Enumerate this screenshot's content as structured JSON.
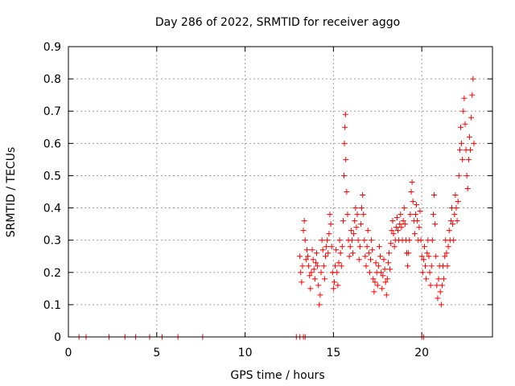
{
  "chart_data": {
    "type": "scatter",
    "title": "Day 286 of 2022, SRMTID for receiver aggo",
    "xlabel": "GPS time / hours",
    "ylabel": "SRMTID / TECUs",
    "xlim": [
      0,
      24
    ],
    "ylim": [
      0,
      0.9
    ],
    "xticks": [
      0,
      5,
      10,
      15,
      20
    ],
    "xtick_labels": [
      "0",
      "5",
      "10",
      "15",
      "20"
    ],
    "yticks": [
      0,
      0.1,
      0.2,
      0.3,
      0.4,
      0.5,
      0.6,
      0.7,
      0.8,
      0.9
    ],
    "ytick_labels": [
      "0",
      "0.1",
      "0.2",
      "0.3",
      "0.4",
      "0.5",
      "0.6",
      "0.7",
      "0.8",
      "0.9"
    ],
    "grid": true,
    "marker": "plus",
    "color": "#ff0000",
    "series": [
      {
        "name": "SRMTID",
        "points": [
          [
            0.6,
            0
          ],
          [
            1.0,
            0
          ],
          [
            2.3,
            0
          ],
          [
            3.2,
            0
          ],
          [
            3.8,
            0
          ],
          [
            4.6,
            0
          ],
          [
            5.3,
            0
          ],
          [
            6.2,
            0
          ],
          [
            7.6,
            0
          ],
          [
            12.9,
            0
          ],
          [
            13.1,
            0
          ],
          [
            13.3,
            0
          ],
          [
            13.4,
            0
          ],
          [
            20.0,
            0
          ],
          [
            20.1,
            0
          ],
          [
            13.1,
            0.25
          ],
          [
            13.15,
            0.2
          ],
          [
            13.2,
            0.17
          ],
          [
            13.25,
            0.22
          ],
          [
            13.3,
            0.33
          ],
          [
            13.35,
            0.36
          ],
          [
            13.4,
            0.3
          ],
          [
            13.45,
            0.24
          ],
          [
            13.5,
            0.27
          ],
          [
            13.55,
            0.25
          ],
          [
            13.6,
            0.22
          ],
          [
            13.65,
            0.19
          ],
          [
            13.7,
            0.15
          ],
          [
            13.75,
            0.2
          ],
          [
            13.8,
            0.27
          ],
          [
            13.85,
            0.24
          ],
          [
            13.9,
            0.21
          ],
          [
            13.95,
            0.18
          ],
          [
            14.0,
            0.23
          ],
          [
            14.05,
            0.26
          ],
          [
            14.1,
            0.22
          ],
          [
            14.15,
            0.16
          ],
          [
            14.2,
            0.1
          ],
          [
            14.25,
            0.13
          ],
          [
            14.3,
            0.2
          ],
          [
            14.35,
            0.3
          ],
          [
            14.4,
            0.27
          ],
          [
            14.45,
            0.22
          ],
          [
            14.5,
            0.18
          ],
          [
            14.55,
            0.25
          ],
          [
            14.6,
            0.28
          ],
          [
            14.65,
            0.3
          ],
          [
            14.7,
            0.26
          ],
          [
            14.75,
            0.32
          ],
          [
            14.8,
            0.38
          ],
          [
            14.85,
            0.35
          ],
          [
            14.9,
            0.28
          ],
          [
            14.95,
            0.2
          ],
          [
            15.0,
            0.15
          ],
          [
            15.05,
            0.17
          ],
          [
            15.1,
            0.22
          ],
          [
            15.15,
            0.27
          ],
          [
            15.2,
            0.2
          ],
          [
            15.25,
            0.16
          ],
          [
            15.3,
            0.23
          ],
          [
            15.35,
            0.3
          ],
          [
            15.4,
            0.26
          ],
          [
            15.45,
            0.22
          ],
          [
            15.5,
            0.28
          ],
          [
            15.55,
            0.36
          ],
          [
            15.6,
            0.5
          ],
          [
            15.62,
            0.6
          ],
          [
            15.65,
            0.65
          ],
          [
            15.68,
            0.69
          ],
          [
            15.7,
            0.55
          ],
          [
            15.75,
            0.45
          ],
          [
            15.8,
            0.38
          ],
          [
            15.85,
            0.3
          ],
          [
            15.9,
            0.25
          ],
          [
            15.95,
            0.28
          ],
          [
            16.0,
            0.33
          ],
          [
            16.05,
            0.3
          ],
          [
            16.1,
            0.26
          ],
          [
            16.15,
            0.32
          ],
          [
            16.2,
            0.36
          ],
          [
            16.25,
            0.4
          ],
          [
            16.3,
            0.34
          ],
          [
            16.35,
            0.38
          ],
          [
            16.4,
            0.3
          ],
          [
            16.45,
            0.24
          ],
          [
            16.5,
            0.28
          ],
          [
            16.55,
            0.35
          ],
          [
            16.6,
            0.4
          ],
          [
            16.65,
            0.44
          ],
          [
            16.7,
            0.38
          ],
          [
            16.75,
            0.3
          ],
          [
            16.8,
            0.25
          ],
          [
            16.85,
            0.22
          ],
          [
            16.9,
            0.28
          ],
          [
            16.95,
            0.33
          ],
          [
            17.0,
            0.26
          ],
          [
            17.05,
            0.2
          ],
          [
            17.1,
            0.24
          ],
          [
            17.15,
            0.3
          ],
          [
            17.2,
            0.27
          ],
          [
            17.25,
            0.18
          ],
          [
            17.3,
            0.14
          ],
          [
            17.35,
            0.17
          ],
          [
            17.4,
            0.23
          ],
          [
            17.45,
            0.2
          ],
          [
            17.5,
            0.16
          ],
          [
            17.55,
            0.22
          ],
          [
            17.6,
            0.28
          ],
          [
            17.65,
            0.25
          ],
          [
            17.7,
            0.2
          ],
          [
            17.75,
            0.15
          ],
          [
            17.8,
            0.19
          ],
          [
            17.85,
            0.24
          ],
          [
            17.9,
            0.21
          ],
          [
            17.95,
            0.17
          ],
          [
            18.0,
            0.13
          ],
          [
            18.05,
            0.18
          ],
          [
            18.1,
            0.23
          ],
          [
            18.15,
            0.26
          ],
          [
            18.2,
            0.21
          ],
          [
            18.25,
            0.29
          ],
          [
            18.3,
            0.33
          ],
          [
            18.35,
            0.36
          ],
          [
            18.4,
            0.32
          ],
          [
            18.45,
            0.28
          ],
          [
            18.5,
            0.3
          ],
          [
            18.55,
            0.34
          ],
          [
            18.6,
            0.37
          ],
          [
            18.65,
            0.33
          ],
          [
            18.7,
            0.3
          ],
          [
            18.75,
            0.35
          ],
          [
            18.8,
            0.38
          ],
          [
            18.85,
            0.34
          ],
          [
            18.9,
            0.3
          ],
          [
            18.95,
            0.36
          ],
          [
            19.0,
            0.4
          ],
          [
            19.05,
            0.35
          ],
          [
            19.1,
            0.3
          ],
          [
            19.15,
            0.26
          ],
          [
            19.2,
            0.22
          ],
          [
            19.25,
            0.26
          ],
          [
            19.3,
            0.3
          ],
          [
            19.35,
            0.38
          ],
          [
            19.4,
            0.45
          ],
          [
            19.45,
            0.48
          ],
          [
            19.5,
            0.42
          ],
          [
            19.55,
            0.36
          ],
          [
            19.6,
            0.32
          ],
          [
            19.65,
            0.38
          ],
          [
            19.7,
            0.41
          ],
          [
            19.75,
            0.36
          ],
          [
            19.8,
            0.3
          ],
          [
            19.85,
            0.34
          ],
          [
            19.9,
            0.39
          ],
          [
            19.95,
            0.3
          ],
          [
            20.0,
            0.25
          ],
          [
            20.05,
            0.2
          ],
          [
            20.1,
            0.24
          ],
          [
            20.15,
            0.28
          ],
          [
            20.2,
            0.22
          ],
          [
            20.25,
            0.18
          ],
          [
            20.3,
            0.26
          ],
          [
            20.35,
            0.3
          ],
          [
            20.4,
            0.25
          ],
          [
            20.45,
            0.2
          ],
          [
            20.5,
            0.16
          ],
          [
            20.55,
            0.22
          ],
          [
            20.6,
            0.3
          ],
          [
            20.65,
            0.38
          ],
          [
            20.7,
            0.44
          ],
          [
            20.75,
            0.35
          ],
          [
            20.8,
            0.25
          ],
          [
            20.85,
            0.16
          ],
          [
            20.9,
            0.12
          ],
          [
            20.95,
            0.18
          ],
          [
            21.0,
            0.22
          ],
          [
            21.05,
            0.14
          ],
          [
            21.1,
            0.1
          ],
          [
            21.15,
            0.16
          ],
          [
            21.2,
            0.22
          ],
          [
            21.25,
            0.18
          ],
          [
            21.3,
            0.25
          ],
          [
            21.35,
            0.3
          ],
          [
            21.4,
            0.26
          ],
          [
            21.45,
            0.22
          ],
          [
            21.5,
            0.28
          ],
          [
            21.55,
            0.33
          ],
          [
            21.6,
            0.3
          ],
          [
            21.65,
            0.36
          ],
          [
            21.7,
            0.4
          ],
          [
            21.75,
            0.35
          ],
          [
            21.8,
            0.3
          ],
          [
            21.85,
            0.38
          ],
          [
            21.9,
            0.44
          ],
          [
            21.95,
            0.4
          ],
          [
            22.0,
            0.36
          ],
          [
            22.05,
            0.42
          ],
          [
            22.1,
            0.5
          ],
          [
            22.15,
            0.58
          ],
          [
            22.2,
            0.65
          ],
          [
            22.25,
            0.6
          ],
          [
            22.3,
            0.55
          ],
          [
            22.35,
            0.7
          ],
          [
            22.4,
            0.74
          ],
          [
            22.45,
            0.66
          ],
          [
            22.5,
            0.58
          ],
          [
            22.55,
            0.5
          ],
          [
            22.6,
            0.46
          ],
          [
            22.65,
            0.55
          ],
          [
            22.7,
            0.62
          ],
          [
            22.75,
            0.58
          ],
          [
            22.8,
            0.68
          ],
          [
            22.85,
            0.75
          ],
          [
            22.9,
            0.8
          ],
          [
            22.95,
            0.6
          ]
        ]
      }
    ]
  }
}
